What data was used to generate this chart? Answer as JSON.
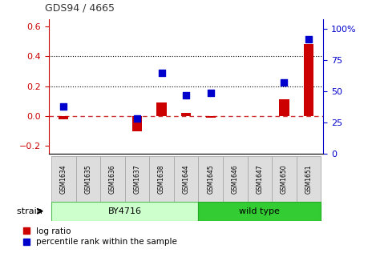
{
  "title": "GDS94 / 4665",
  "samples": [
    "GSM1634",
    "GSM1635",
    "GSM1636",
    "GSM1637",
    "GSM1638",
    "GSM1644",
    "GSM1645",
    "GSM1646",
    "GSM1647",
    "GSM1650",
    "GSM1651"
  ],
  "log_ratio": [
    -0.02,
    0.0,
    0.0,
    -0.1,
    0.09,
    0.02,
    -0.01,
    0.0,
    0.0,
    0.11,
    0.48
  ],
  "percentile_rank": [
    38,
    null,
    null,
    28,
    65,
    47,
    49,
    null,
    null,
    57,
    92
  ],
  "bar_color": "#cc0000",
  "scatter_color": "#0000cc",
  "dashed_line_color": "#cc3333",
  "grid_color": "#000000",
  "left_ylim": [
    -0.25,
    0.65
  ],
  "right_ylim": [
    0,
    108.33
  ],
  "left_yticks": [
    -0.2,
    0.0,
    0.2,
    0.4,
    0.6
  ],
  "right_yticks": [
    0,
    25,
    50,
    75,
    100
  ],
  "right_yticklabels": [
    "0",
    "25",
    "50",
    "75",
    "100%"
  ],
  "hlines": [
    0.2,
    0.4
  ],
  "by4716_label": "BY4716",
  "wildtype_label": "wild type",
  "strain_label": "strain",
  "legend_log_ratio": "log ratio",
  "legend_percentile": "percentile rank within the sample",
  "bg_color_by4716": "#ccffcc",
  "bg_color_wildtype": "#33cc33",
  "by4716_n": 6,
  "wildtype_n": 5,
  "figure_width": 4.69,
  "figure_height": 3.36
}
